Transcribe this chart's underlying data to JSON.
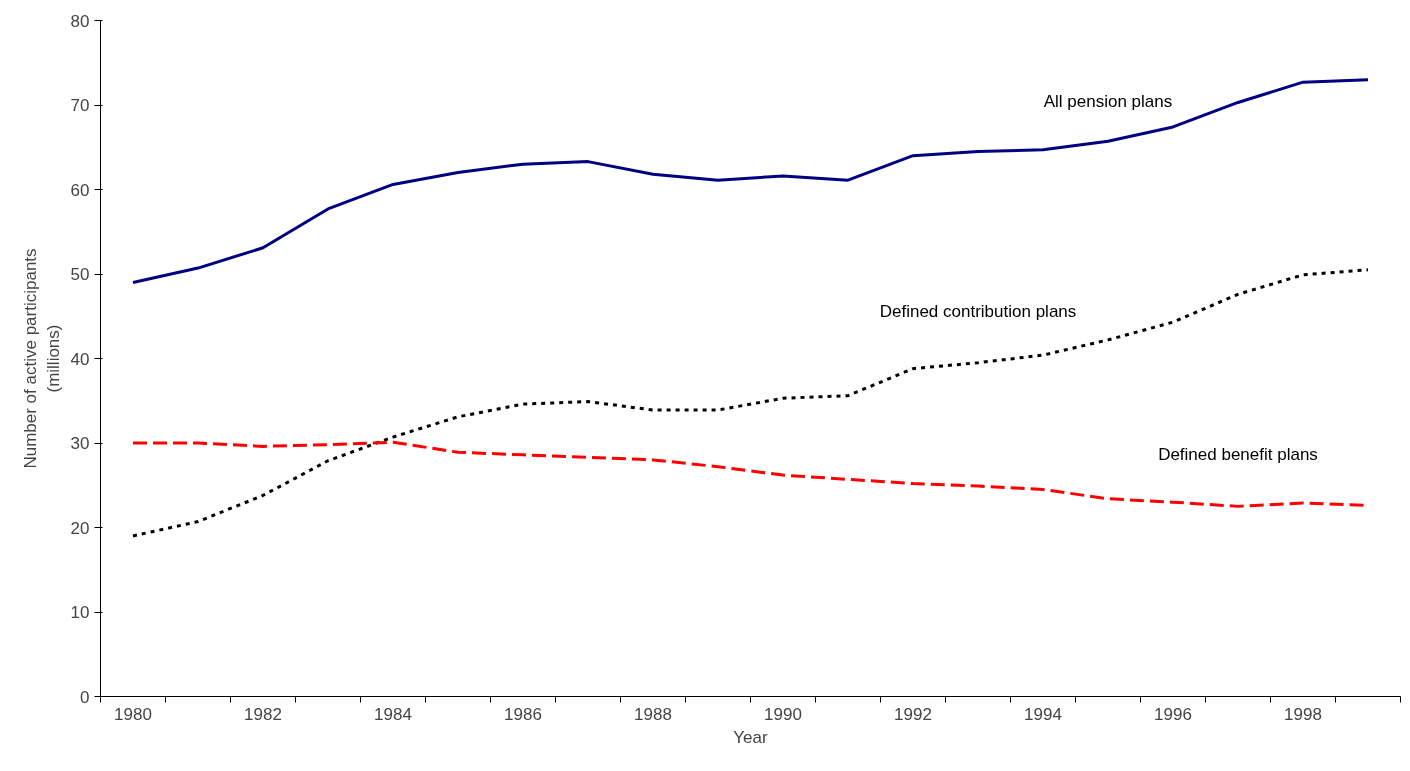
{
  "chart_data": {
    "type": "line",
    "xlabel": "Year",
    "ylabel": "Number of active participants\n(millions)",
    "categories": [
      "1980",
      null,
      "1982",
      null,
      "1984",
      null,
      "1986",
      null,
      "1988",
      null,
      "1990",
      null,
      "1992",
      null,
      "1994",
      null,
      "1996",
      null,
      "1998",
      null
    ],
    "series": [
      {
        "name": "All pension plans",
        "color": "#000080",
        "line_style": "solid",
        "values": [
          49.0,
          50.7,
          53.1,
          57.7,
          60.6,
          62.0,
          63.0,
          63.3,
          61.8,
          61.1,
          61.6,
          61.1,
          64.0,
          64.5,
          64.7,
          65.7,
          67.4,
          70.3,
          72.7,
          73.0
        ]
      },
      {
        "name": "Defined contribution plans",
        "color": "#000000",
        "line_style": "dotted",
        "values": [
          19.0,
          20.7,
          23.8,
          27.9,
          30.7,
          33.1,
          34.6,
          34.9,
          33.9,
          33.9,
          35.3,
          35.6,
          38.8,
          39.5,
          40.4,
          42.2,
          44.3,
          47.6,
          49.9,
          50.5
        ]
      },
      {
        "name": "Defined benefit plans",
        "color": "#ff0000",
        "line_style": "dashed",
        "values": [
          30.0,
          30.0,
          29.6,
          29.8,
          30.1,
          28.9,
          28.6,
          28.3,
          28.0,
          27.2,
          26.2,
          25.7,
          25.2,
          24.9,
          24.5,
          23.4,
          23.0,
          22.5,
          22.9,
          22.6
        ]
      }
    ],
    "ylim": [
      0,
      80
    ],
    "yticks": [
      0,
      10,
      20,
      30,
      40,
      50,
      60,
      70,
      80
    ],
    "grid": false,
    "legend": false,
    "marker": "none"
  }
}
